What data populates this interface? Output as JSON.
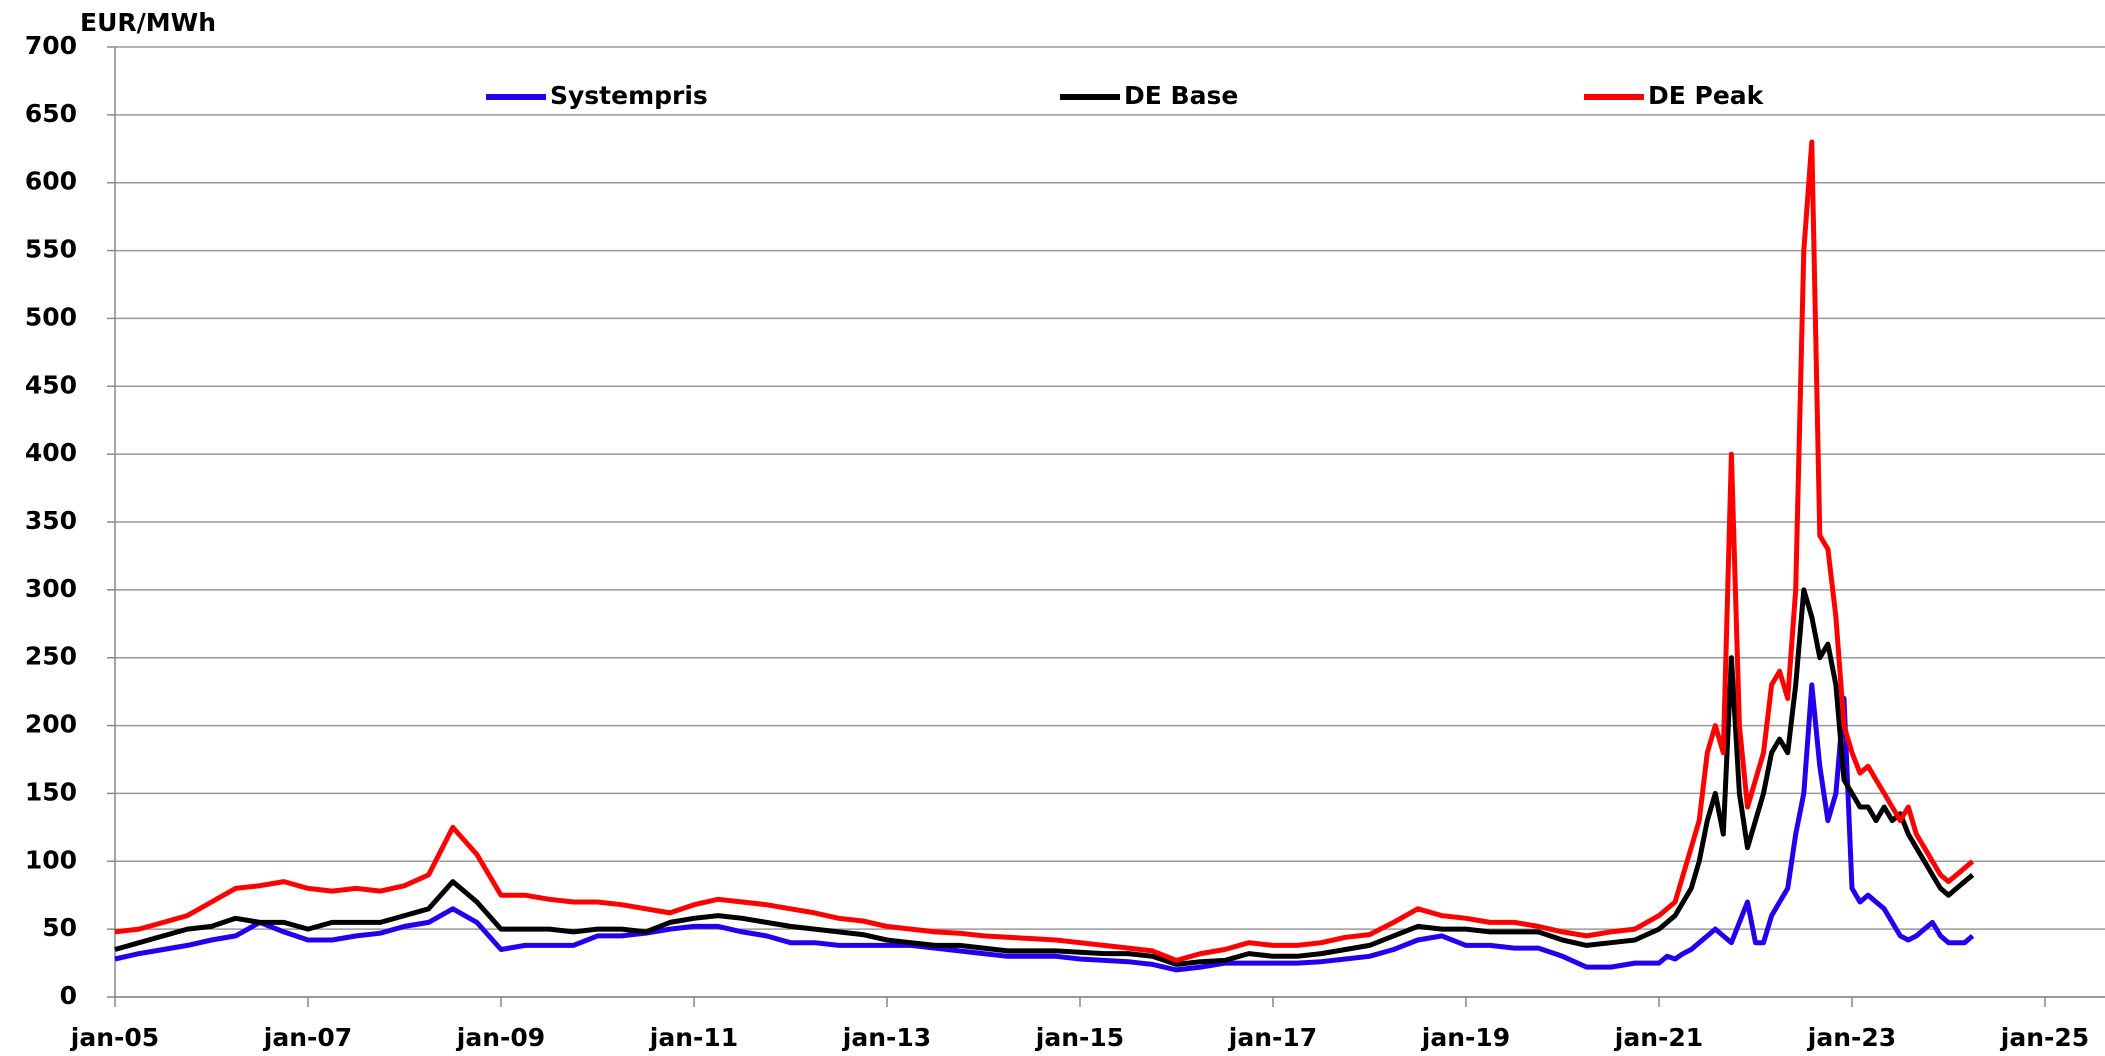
{
  "chart_data": {
    "type": "line",
    "y_label": "EUR/MWh",
    "x": [
      "2005-01",
      "2005-04",
      "2005-07",
      "2005-10",
      "2006-01",
      "2006-04",
      "2006-07",
      "2006-10",
      "2007-01",
      "2007-04",
      "2007-07",
      "2007-10",
      "2008-01",
      "2008-04",
      "2008-07",
      "2008-10",
      "2009-01",
      "2009-04",
      "2009-07",
      "2009-10",
      "2010-01",
      "2010-04",
      "2010-07",
      "2010-10",
      "2011-01",
      "2011-04",
      "2011-07",
      "2011-10",
      "2012-01",
      "2012-04",
      "2012-07",
      "2012-10",
      "2013-01",
      "2013-04",
      "2013-07",
      "2013-10",
      "2014-01",
      "2014-04",
      "2014-07",
      "2014-10",
      "2015-01",
      "2015-04",
      "2015-07",
      "2015-10",
      "2016-01",
      "2016-04",
      "2016-07",
      "2016-10",
      "2017-01",
      "2017-04",
      "2017-07",
      "2017-10",
      "2018-01",
      "2018-04",
      "2018-07",
      "2018-10",
      "2019-01",
      "2019-04",
      "2019-07",
      "2019-10",
      "2020-01",
      "2020-04",
      "2020-07",
      "2020-10",
      "2021-01",
      "2021-02",
      "2021-03",
      "2021-04",
      "2021-05",
      "2021-06",
      "2021-07",
      "2021-08",
      "2021-09",
      "2021-10",
      "2021-11",
      "2021-12",
      "2022-01",
      "2022-02",
      "2022-03",
      "2022-04",
      "2022-05",
      "2022-06",
      "2022-07",
      "2022-08",
      "2022-09",
      "2022-10",
      "2022-11",
      "2022-12",
      "2023-01",
      "2023-02",
      "2023-03",
      "2023-04",
      "2023-05",
      "2023-06",
      "2023-07",
      "2023-08",
      "2023-09",
      "2023-10",
      "2023-11",
      "2023-12",
      "2024-01",
      "2024-02",
      "2024-03",
      "2024-04"
    ],
    "series": [
      {
        "name": "Systempris",
        "color": "#2200ee",
        "values": [
          28,
          32,
          35,
          38,
          42,
          45,
          55,
          48,
          42,
          42,
          45,
          47,
          52,
          55,
          65,
          55,
          35,
          38,
          38,
          38,
          45,
          45,
          47,
          50,
          52,
          52,
          48,
          45,
          40,
          40,
          38,
          38,
          38,
          38,
          36,
          34,
          32,
          30,
          30,
          30,
          28,
          27,
          26,
          24,
          20,
          22,
          25,
          25,
          25,
          25,
          26,
          28,
          30,
          35,
          42,
          45,
          38,
          38,
          36,
          36,
          30,
          22,
          22,
          25,
          25,
          30,
          28,
          32,
          35,
          40,
          45,
          50,
          45,
          40,
          55,
          70,
          40,
          40,
          60,
          70,
          80,
          120,
          150,
          230,
          170,
          130,
          150,
          220,
          80,
          70,
          75,
          70,
          65,
          55,
          45,
          42,
          45,
          50,
          55,
          45,
          40,
          40,
          40,
          45
        ]
      },
      {
        "name": "DE Base",
        "color": "#000000",
        "values": [
          35,
          40,
          45,
          50,
          52,
          58,
          55,
          55,
          50,
          55,
          55,
          55,
          60,
          65,
          85,
          70,
          50,
          50,
          50,
          48,
          50,
          50,
          48,
          55,
          58,
          60,
          58,
          55,
          52,
          50,
          48,
          46,
          42,
          40,
          38,
          38,
          36,
          34,
          34,
          34,
          33,
          32,
          32,
          30,
          24,
          26,
          27,
          32,
          30,
          30,
          32,
          35,
          38,
          45,
          52,
          50,
          50,
          48,
          48,
          48,
          42,
          38,
          40,
          42,
          50,
          55,
          60,
          70,
          80,
          100,
          130,
          150,
          120,
          250,
          150,
          110,
          130,
          150,
          180,
          190,
          180,
          230,
          300,
          280,
          250,
          260,
          230,
          160,
          150,
          140,
          140,
          130,
          140,
          130,
          135,
          120,
          110,
          100,
          90,
          80,
          75,
          80,
          85,
          90
        ]
      },
      {
        "name": "DE Peak",
        "color": "#ff0000",
        "values": [
          48,
          50,
          55,
          60,
          70,
          80,
          82,
          85,
          80,
          78,
          80,
          78,
          82,
          90,
          125,
          105,
          75,
          75,
          72,
          70,
          70,
          68,
          65,
          62,
          68,
          72,
          70,
          68,
          65,
          62,
          58,
          56,
          52,
          50,
          48,
          47,
          45,
          44,
          43,
          42,
          40,
          38,
          36,
          34,
          27,
          32,
          35,
          40,
          38,
          38,
          40,
          44,
          46,
          55,
          65,
          60,
          58,
          55,
          55,
          52,
          48,
          45,
          48,
          50,
          60,
          65,
          70,
          90,
          110,
          130,
          180,
          200,
          180,
          400,
          200,
          140,
          160,
          180,
          230,
          240,
          220,
          300,
          550,
          630,
          340,
          330,
          280,
          200,
          180,
          165,
          170,
          160,
          150,
          140,
          130,
          140,
          120,
          110,
          100,
          90,
          85,
          90,
          95,
          100
        ]
      }
    ],
    "xlim": [
      "2005-01",
      "2025-01"
    ],
    "xticks": [
      {
        "value": "2005-01",
        "label": "jan-05"
      },
      {
        "value": "2007-01",
        "label": "jan-07"
      },
      {
        "value": "2009-01",
        "label": "jan-09"
      },
      {
        "value": "2011-01",
        "label": "jan-11"
      },
      {
        "value": "2013-01",
        "label": "jan-13"
      },
      {
        "value": "2015-01",
        "label": "jan-15"
      },
      {
        "value": "2017-01",
        "label": "jan-17"
      },
      {
        "value": "2019-01",
        "label": "jan-19"
      },
      {
        "value": "2021-01",
        "label": "jan-21"
      },
      {
        "value": "2023-01",
        "label": "jan-23"
      },
      {
        "value": "2025-01",
        "label": "jan-25"
      }
    ],
    "ylim": [
      0,
      700
    ],
    "yticks": [
      0,
      50,
      100,
      150,
      200,
      250,
      300,
      350,
      400,
      450,
      500,
      550,
      600,
      650,
      700
    ],
    "grid": true,
    "legend": "top"
  }
}
